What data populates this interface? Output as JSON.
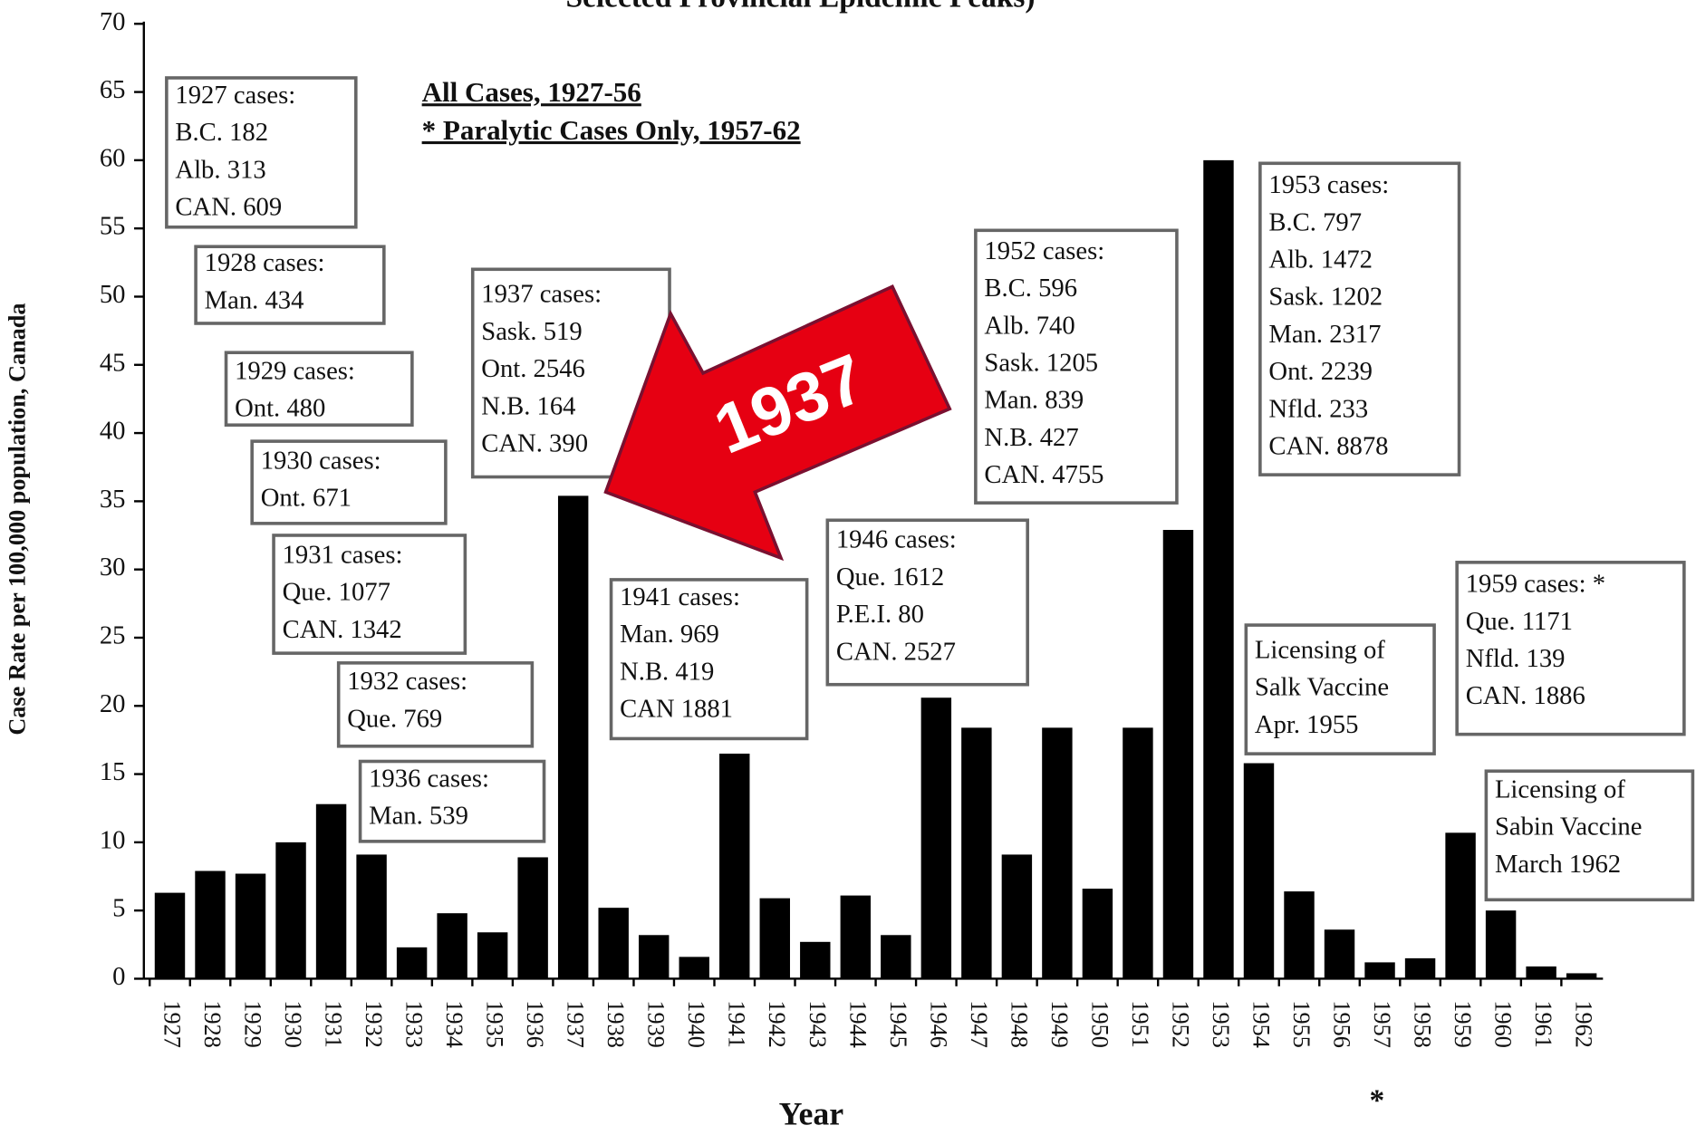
{
  "chart_data": {
    "type": "bar",
    "title": "Selected Provincial Epidemic Peaks)",
    "subtitle": [
      "All Cases, 1927-56",
      "* Paralytic Cases Only, 1957-62"
    ],
    "x_label": "Year",
    "y_label": "Case Rate per 100,000 population, Canada",
    "categories": [
      "1927",
      "1928",
      "1929",
      "1930",
      "1931",
      "1932",
      "1933",
      "1934",
      "1935",
      "1936",
      "1937",
      "1938",
      "1939",
      "1940",
      "1941",
      "1942",
      "1943",
      "1944",
      "1945",
      "1946",
      "1947",
      "1948",
      "1949",
      "1950",
      "1951",
      "1952",
      "1953",
      "1954",
      "1955",
      "1956",
      "1957",
      "1958",
      "1959",
      "1960",
      "1961",
      "1962"
    ],
    "values": [
      6.3,
      7.9,
      7.7,
      10.0,
      12.8,
      9.1,
      2.3,
      4.8,
      3.4,
      8.9,
      35.4,
      5.2,
      3.2,
      1.6,
      16.5,
      5.9,
      2.7,
      6.1,
      3.2,
      20.6,
      18.4,
      9.1,
      18.4,
      6.6,
      18.4,
      32.9,
      60.0,
      15.8,
      6.4,
      3.6,
      1.2,
      1.5,
      10.7,
      5.0,
      0.9,
      0.4
    ],
    "color": "#000000",
    "ylim": [
      0,
      70
    ],
    "yticks": [
      0,
      5,
      10,
      15,
      20,
      25,
      30,
      35,
      40,
      45,
      50,
      55,
      60,
      65,
      70
    ],
    "footnote_mark": "*",
    "arrow_label": "1937",
    "annotation_boxes": [
      {
        "lines": [
          "1927 cases:",
          "B.C. 182",
          "Alb. 313",
          "CAN. 609"
        ]
      },
      {
        "lines": [
          "1928 cases:",
          "Man. 434"
        ]
      },
      {
        "lines": [
          "1929 cases:",
          "Ont. 480"
        ]
      },
      {
        "lines": [
          "1930 cases:",
          "Ont. 671"
        ]
      },
      {
        "lines": [
          "1931 cases:",
          "Que. 1077",
          "CAN. 1342"
        ]
      },
      {
        "lines": [
          "1932 cases:",
          "Que. 769"
        ]
      },
      {
        "lines": [
          "1936 cases:",
          "Man. 539"
        ]
      },
      {
        "lines": [
          "1937 cases:",
          "Sask. 519",
          "Ont. 2546",
          "N.B. 164",
          "CAN. 390"
        ]
      },
      {
        "lines": [
          "1941 cases:",
          "Man. 969",
          "N.B. 419",
          "CAN 1881"
        ]
      },
      {
        "lines": [
          "1946 cases:",
          "Que. 1612",
          "P.E.I. 80",
          "CAN. 2527"
        ]
      },
      {
        "lines": [
          "1952 cases:",
          "B.C. 596",
          "Alb. 740",
          "Sask. 1205",
          "Man. 839",
          "N.B. 427",
          "CAN. 4755"
        ]
      },
      {
        "lines": [
          "1953 cases:",
          "B.C. 797",
          "Alb. 1472",
          "Sask. 1202",
          "Man. 2317",
          "Ont. 2239",
          "Nfld. 233",
          "CAN. 8878"
        ]
      },
      {
        "lines": [
          "Licensing of",
          "Salk Vaccine",
          "Apr. 1955"
        ]
      },
      {
        "lines": [
          "1959 cases: *",
          "Que. 1171",
          "Nfld. 139",
          "CAN. 1886"
        ]
      },
      {
        "lines": [
          "Licensing of",
          "Sabin Vaccine",
          "March 1962"
        ]
      }
    ]
  }
}
